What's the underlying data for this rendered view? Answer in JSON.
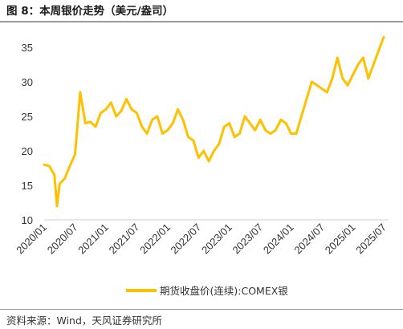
{
  "title": "图 8：本周银价走势（美元/盎司）",
  "source": "资料来源：Wind，天风证券研究所",
  "chart_data": {
    "type": "line",
    "title": "图 8：本周银价走势（美元/盎司）",
    "xlabel": "",
    "ylabel": "",
    "ylim": [
      10,
      35
    ],
    "yticks": [
      10,
      15,
      20,
      25,
      30,
      35
    ],
    "xticks": [
      "2020/01",
      "2020/07",
      "2021/01",
      "2021/07",
      "2022/01",
      "2022/07",
      "2023/01",
      "2023/07",
      "2024/01",
      "2024/07",
      "2025/01",
      "2025/07"
    ],
    "grid": false,
    "legend": "bottom-center",
    "series": [
      {
        "name": "期货收盘价(连续):COMEX银",
        "color": "#FFC000",
        "x": [
          "2020/01",
          "2020/02",
          "2020/03",
          "2020/03",
          "2020/04",
          "2020/05",
          "2020/06",
          "2020/07",
          "2020/08",
          "2020/09",
          "2020/10",
          "2020/11",
          "2020/12",
          "2021/01",
          "2021/02",
          "2021/03",
          "2021/04",
          "2021/05",
          "2021/06",
          "2021/07",
          "2021/08",
          "2021/09",
          "2021/10",
          "2021/11",
          "2021/12",
          "2022/01",
          "2022/02",
          "2022/03",
          "2022/04",
          "2022/05",
          "2022/06",
          "2022/07",
          "2022/08",
          "2022/09",
          "2022/10",
          "2022/11",
          "2022/12",
          "2023/01",
          "2023/02",
          "2023/03",
          "2023/04",
          "2023/05",
          "2023/06",
          "2023/07",
          "2023/08",
          "2023/09",
          "2023/10",
          "2023/11",
          "2023/12",
          "2024/01",
          "2024/02",
          "2024/03",
          "2024/04",
          "2024/05",
          "2024/06",
          "2024/07",
          "2024/08",
          "2024/09",
          "2024/10",
          "2024/11",
          "2024/12",
          "2025/01",
          "2025/02",
          "2025/03",
          "2025/04",
          "2025/05",
          "2025/06",
          "2025/07"
        ],
        "values": [
          18.0,
          17.8,
          16.5,
          12.0,
          15.2,
          16.0,
          17.8,
          19.5,
          28.5,
          24.0,
          24.2,
          23.5,
          25.5,
          26.0,
          27.0,
          25.0,
          25.8,
          27.5,
          26.0,
          25.5,
          23.5,
          22.5,
          24.5,
          25.0,
          22.5,
          23.0,
          24.0,
          26.0,
          24.5,
          22.0,
          21.5,
          19.0,
          20.0,
          18.5,
          20.0,
          21.0,
          23.5,
          24.0,
          22.0,
          22.5,
          25.0,
          24.0,
          23.0,
          24.5,
          23.0,
          22.5,
          23.0,
          24.5,
          24.0,
          22.5,
          22.5,
          25.0,
          27.5,
          30.0,
          29.5,
          29.0,
          28.5,
          30.5,
          33.5,
          30.5,
          29.5,
          31.0,
          32.5,
          33.5,
          30.5,
          32.5,
          34.5,
          36.5
        ]
      }
    ]
  }
}
